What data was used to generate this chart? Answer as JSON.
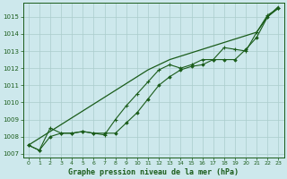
{
  "title": "Graphe pression niveau de la mer (hPa)",
  "background_color": "#cde8ec",
  "grid_color": "#aacccc",
  "line_color": "#1a5c1a",
  "x_values": [
    0,
    1,
    2,
    3,
    4,
    5,
    6,
    7,
    8,
    9,
    10,
    11,
    12,
    13,
    14,
    15,
    16,
    17,
    18,
    19,
    20,
    21,
    22,
    23
  ],
  "line_straight": [
    1007.5,
    1007.9,
    1008.3,
    1008.7,
    1009.1,
    1009.5,
    1009.9,
    1010.3,
    1010.7,
    1011.1,
    1011.5,
    1011.9,
    1012.2,
    1012.5,
    1012.7,
    1012.9,
    1013.1,
    1013.3,
    1013.5,
    1013.7,
    1013.9,
    1014.1,
    1015.0,
    1015.6
  ],
  "line_markers": [
    1007.5,
    1007.2,
    1008.0,
    1008.2,
    1008.2,
    1008.3,
    1008.2,
    1008.2,
    1008.2,
    1008.8,
    1009.4,
    1010.2,
    1011.0,
    1011.5,
    1011.9,
    1012.1,
    1012.2,
    1012.5,
    1012.5,
    1012.5,
    1013.1,
    1013.8,
    1015.0,
    1015.5
  ],
  "line_steep": [
    1007.5,
    1007.2,
    1008.5,
    1008.2,
    1008.2,
    1008.3,
    1008.2,
    1008.1,
    1009.0,
    1009.8,
    1010.5,
    1011.2,
    1011.9,
    1012.2,
    1012.0,
    1012.2,
    1012.5,
    1012.5,
    1013.2,
    1013.1,
    1013.0,
    1014.1,
    1015.1,
    1015.5
  ],
  "ylim": [
    1006.8,
    1015.8
  ],
  "xlim": [
    -0.5,
    23.5
  ],
  "yticks": [
    1007,
    1008,
    1009,
    1010,
    1011,
    1012,
    1013,
    1014,
    1015
  ],
  "xticks": [
    0,
    1,
    2,
    3,
    4,
    5,
    6,
    7,
    8,
    9,
    10,
    11,
    12,
    13,
    14,
    15,
    16,
    17,
    18,
    19,
    20,
    21,
    22,
    23
  ]
}
